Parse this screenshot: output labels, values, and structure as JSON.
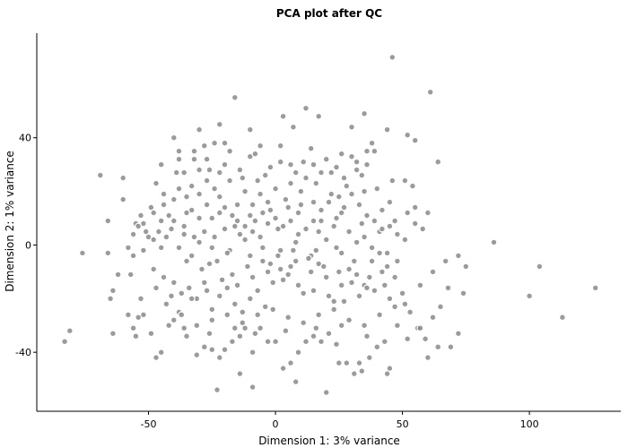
{
  "chart_data": {
    "type": "scatter",
    "title": "PCA plot after QC",
    "xlabel": "Dimension 1: 3% variance",
    "ylabel": "Dimension 2: 1% variance",
    "xlim": [
      -94,
      136
    ],
    "ylim": [
      -62,
      79
    ],
    "xticks": [
      -50,
      0,
      50,
      100
    ],
    "yticks": [
      -40,
      0,
      40
    ],
    "xtick_labels": [
      "-50",
      "0",
      "50",
      "100"
    ],
    "ytick_labels": [
      "-40",
      "0",
      "40"
    ],
    "grid": false,
    "legend": "none",
    "point_color": "#7a7a7a",
    "points": [
      [
        46,
        70
      ],
      [
        -16,
        55
      ],
      [
        61,
        57
      ],
      [
        12,
        51
      ],
      [
        -10,
        43
      ],
      [
        17,
        48
      ],
      [
        3,
        48
      ],
      [
        -30,
        43
      ],
      [
        -22,
        45
      ],
      [
        35,
        49
      ],
      [
        44,
        43
      ],
      [
        52,
        41
      ],
      [
        55,
        39
      ],
      [
        30,
        44
      ],
      [
        7,
        44
      ],
      [
        -6,
        37
      ],
      [
        -10,
        33
      ],
      [
        -24,
        38
      ],
      [
        -20,
        38
      ],
      [
        -32,
        35
      ],
      [
        -38,
        35
      ],
      [
        -27,
        32
      ],
      [
        -32,
        32
      ],
      [
        -38,
        32
      ],
      [
        -45,
        30
      ],
      [
        -47,
        23
      ],
      [
        -69,
        26
      ],
      [
        -60,
        25
      ],
      [
        -36,
        27
      ],
      [
        -30,
        28
      ],
      [
        -26,
        28
      ],
      [
        -22,
        27
      ],
      [
        -14,
        28
      ],
      [
        -7,
        24
      ],
      [
        -2,
        29
      ],
      [
        2,
        31
      ],
      [
        6,
        30
      ],
      [
        11,
        31
      ],
      [
        15,
        30
      ],
      [
        22,
        27
      ],
      [
        27,
        25
      ],
      [
        32,
        31
      ],
      [
        36,
        30
      ],
      [
        39,
        35
      ],
      [
        46,
        24
      ],
      [
        51,
        24
      ],
      [
        54,
        22
      ],
      [
        64,
        31
      ],
      [
        -53,
        11
      ],
      [
        -55,
        8
      ],
      [
        -54,
        7
      ],
      [
        -51,
        5
      ],
      [
        -50,
        3
      ],
      [
        -48,
        2
      ],
      [
        -45,
        9
      ],
      [
        -42,
        11
      ],
      [
        -40,
        17
      ],
      [
        -38,
        21
      ],
      [
        -35,
        18
      ],
      [
        -33,
        13
      ],
      [
        -30,
        10
      ],
      [
        -27,
        15
      ],
      [
        -24,
        21
      ],
      [
        -22,
        18
      ],
      [
        -20,
        14
      ],
      [
        -17,
        11
      ],
      [
        -15,
        9
      ],
      [
        -12,
        7
      ],
      [
        -9,
        5
      ],
      [
        -6,
        3
      ],
      [
        -3,
        8
      ],
      [
        0,
        10
      ],
      [
        3,
        7
      ],
      [
        6,
        9
      ],
      [
        9,
        12
      ],
      [
        12,
        6
      ],
      [
        15,
        9
      ],
      [
        18,
        13
      ],
      [
        21,
        16
      ],
      [
        24,
        10
      ],
      [
        27,
        14
      ],
      [
        30,
        19
      ],
      [
        33,
        15
      ],
      [
        36,
        11
      ],
      [
        39,
        9
      ],
      [
        42,
        13
      ],
      [
        45,
        7
      ],
      [
        48,
        4
      ],
      [
        51,
        2
      ],
      [
        55,
        8
      ],
      [
        -66,
        9
      ],
      [
        -62,
        -11
      ],
      [
        -56,
        -4
      ],
      [
        -52,
        -2
      ],
      [
        -48,
        -9
      ],
      [
        -44,
        -12
      ],
      [
        -40,
        -14
      ],
      [
        -37,
        -18
      ],
      [
        -34,
        -16
      ],
      [
        -31,
        -20
      ],
      [
        -28,
        -14
      ],
      [
        -25,
        -24
      ],
      [
        -22,
        -19
      ],
      [
        -19,
        -16
      ],
      [
        -16,
        -22
      ],
      [
        -13,
        -25
      ],
      [
        -10,
        -20
      ],
      [
        -7,
        -17
      ],
      [
        -4,
        -23
      ],
      [
        -1,
        -14
      ],
      [
        2,
        -9
      ],
      [
        5,
        -11
      ],
      [
        8,
        -6
      ],
      [
        11,
        -18
      ],
      [
        14,
        -10
      ],
      [
        17,
        -7
      ],
      [
        20,
        -12
      ],
      [
        23,
        -21
      ],
      [
        26,
        -15
      ],
      [
        29,
        -9
      ],
      [
        32,
        -11
      ],
      [
        35,
        -15
      ],
      [
        38,
        -6
      ],
      [
        41,
        -3
      ],
      [
        44,
        -8
      ],
      [
        47,
        -12
      ],
      [
        50,
        -18
      ],
      [
        53,
        -25
      ],
      [
        56,
        -31
      ],
      [
        59,
        -35
      ],
      [
        62,
        -27
      ],
      [
        65,
        -23
      ],
      [
        68,
        -16
      ],
      [
        72,
        -4
      ],
      [
        74,
        -18
      ],
      [
        75,
        -8
      ],
      [
        -76,
        -3
      ],
      [
        -66,
        -3
      ],
      [
        -64,
        -17
      ],
      [
        -65,
        -20
      ],
      [
        -64,
        -33
      ],
      [
        -58,
        -26
      ],
      [
        -56,
        -31
      ],
      [
        -55,
        -34
      ],
      [
        -54,
        -27
      ],
      [
        -52,
        -26
      ],
      [
        -49,
        -33
      ],
      [
        -47,
        -42
      ],
      [
        -45,
        -40
      ],
      [
        -42,
        -30
      ],
      [
        -40,
        -28
      ],
      [
        -38,
        -25
      ],
      [
        -35,
        -34
      ],
      [
        -31,
        -41
      ],
      [
        -28,
        -38
      ],
      [
        -25,
        -39
      ],
      [
        -22,
        -42
      ],
      [
        -20,
        -39
      ],
      [
        -17,
        -36
      ],
      [
        -14,
        -34
      ],
      [
        -12,
        -31
      ],
      [
        -9,
        -40
      ],
      [
        -6,
        -31
      ],
      [
        -3,
        -36
      ],
      [
        0,
        -36
      ],
      [
        3,
        -46
      ],
      [
        6,
        -44
      ],
      [
        9,
        -40
      ],
      [
        12,
        -36
      ],
      [
        15,
        -34
      ],
      [
        18,
        -36
      ],
      [
        21,
        -33
      ],
      [
        24,
        -37
      ],
      [
        28,
        -44
      ],
      [
        31,
        -48
      ],
      [
        34,
        -47
      ],
      [
        37,
        -42
      ],
      [
        40,
        -38
      ],
      [
        43,
        -36
      ],
      [
        45,
        -46
      ],
      [
        48,
        -30
      ],
      [
        52,
        -35
      ],
      [
        57,
        -31
      ],
      [
        60,
        -42
      ],
      [
        64,
        -38
      ],
      [
        69,
        -38
      ],
      [
        72,
        -33
      ],
      [
        -83,
        -36
      ],
      [
        -81,
        -32
      ],
      [
        -23,
        -54
      ],
      [
        -9,
        -53
      ],
      [
        -14,
        -48
      ],
      [
        8,
        -51
      ],
      [
        20,
        -55
      ],
      [
        44,
        -48
      ],
      [
        33,
        -44
      ],
      [
        25,
        -44
      ],
      [
        86,
        1
      ],
      [
        104,
        -8
      ],
      [
        100,
        -19
      ],
      [
        113,
        -27
      ],
      [
        126,
        -16
      ],
      [
        -58,
        -1
      ],
      [
        -45,
        -1
      ],
      [
        -30,
        1
      ],
      [
        -25,
        -1
      ],
      [
        -18,
        -2
      ],
      [
        -12,
        2
      ],
      [
        -5,
        -1
      ],
      [
        2,
        -2
      ],
      [
        8,
        1
      ],
      [
        14,
        -4
      ],
      [
        20,
        2
      ],
      [
        26,
        -3
      ],
      [
        32,
        1
      ],
      [
        38,
        -1
      ],
      [
        44,
        -3
      ],
      [
        -60,
        17
      ],
      [
        -41,
        6
      ],
      [
        -36,
        4
      ],
      [
        -28,
        5
      ],
      [
        -20,
        6
      ],
      [
        -14,
        4
      ],
      [
        -9,
        15
      ],
      [
        -3,
        16
      ],
      [
        4,
        17
      ],
      [
        10,
        20
      ],
      [
        16,
        23
      ],
      [
        22,
        19
      ],
      [
        28,
        22
      ],
      [
        34,
        26
      ],
      [
        40,
        21
      ],
      [
        -18,
        24
      ],
      [
        -12,
        20
      ],
      [
        -6,
        19
      ],
      [
        0,
        21
      ],
      [
        6,
        23
      ],
      [
        12,
        25
      ],
      [
        18,
        27
      ],
      [
        24,
        29
      ],
      [
        30,
        33
      ],
      [
        36,
        35
      ],
      [
        -27,
        24
      ],
      [
        -33,
        22
      ],
      [
        -39,
        27
      ],
      [
        -44,
        19
      ],
      [
        -49,
        14
      ],
      [
        -35,
        -6
      ],
      [
        -29,
        -9
      ],
      [
        -23,
        -6
      ],
      [
        -17,
        -11
      ],
      [
        -11,
        -8
      ],
      [
        -5,
        -6
      ],
      [
        1,
        -4
      ],
      [
        7,
        -2
      ],
      [
        13,
        -5
      ],
      [
        19,
        -8
      ],
      [
        25,
        -10
      ],
      [
        31,
        -6
      ],
      [
        37,
        -12
      ],
      [
        43,
        -15
      ],
      [
        -43,
        -22
      ],
      [
        -37,
        -26
      ],
      [
        -31,
        -30
      ],
      [
        -25,
        -28
      ],
      [
        -19,
        -26
      ],
      [
        -13,
        -29
      ],
      [
        -7,
        -26
      ],
      [
        -1,
        -24
      ],
      [
        5,
        -27
      ],
      [
        11,
        -29
      ],
      [
        17,
        -26
      ],
      [
        23,
        -24
      ],
      [
        29,
        -28
      ],
      [
        35,
        -30
      ],
      [
        41,
        -26
      ],
      [
        47,
        -23
      ],
      [
        -47,
        -16
      ],
      [
        -41,
        -19
      ],
      [
        -33,
        -20
      ],
      [
        -27,
        -17
      ],
      [
        -21,
        -13
      ],
      [
        -15,
        -15
      ],
      [
        -9,
        -12
      ],
      [
        -3,
        -10
      ],
      [
        3,
        -13
      ],
      [
        9,
        -15
      ],
      [
        15,
        -17
      ],
      [
        21,
        -19
      ],
      [
        27,
        -21
      ],
      [
        33,
        -19
      ],
      [
        39,
        -17
      ],
      [
        45,
        -20
      ],
      [
        51,
        -22
      ],
      [
        57,
        -15
      ],
      [
        62,
        -10
      ],
      [
        67,
        -6
      ],
      [
        -53,
        -20
      ],
      [
        -57,
        -11
      ],
      [
        -35,
        12
      ],
      [
        -25,
        10
      ],
      [
        -15,
        15
      ],
      [
        -5,
        12
      ],
      [
        5,
        14
      ],
      [
        15,
        16
      ],
      [
        25,
        18
      ],
      [
        35,
        20
      ],
      [
        45,
        16
      ],
      [
        55,
        14
      ],
      [
        60,
        12
      ],
      [
        58,
        6
      ],
      [
        52,
        12
      ],
      [
        -28,
        37
      ],
      [
        -18,
        35
      ],
      [
        -8,
        34
      ],
      [
        2,
        37
      ],
      [
        14,
        36
      ],
      [
        26,
        34
      ],
      [
        38,
        38
      ],
      [
        -40,
        40
      ],
      [
        -46,
        5
      ],
      [
        -43,
        3
      ],
      [
        -38,
        -1
      ],
      [
        -33,
        -4
      ],
      [
        -26,
        -7
      ],
      [
        -19,
        -3
      ],
      [
        -10,
        -4
      ],
      [
        -2,
        -7
      ],
      [
        6,
        -8
      ],
      [
        16,
        -2
      ],
      [
        24,
        -1
      ],
      [
        30,
        -14
      ],
      [
        36,
        -16
      ],
      [
        42,
        -10
      ],
      [
        48,
        -6
      ],
      [
        -56,
        4
      ],
      [
        -52,
        8
      ],
      [
        -48,
        12
      ],
      [
        -44,
        15
      ],
      [
        -40,
        9
      ],
      [
        -36,
        7
      ],
      [
        -32,
        3
      ],
      [
        -24,
        3
      ],
      [
        -16,
        7
      ],
      [
        -8,
        9
      ],
      [
        1,
        6
      ],
      [
        9,
        4
      ],
      [
        17,
        5
      ],
      [
        23,
        7
      ],
      [
        29,
        5
      ],
      [
        35,
        3
      ],
      [
        41,
        5
      ],
      [
        47,
        9
      ],
      [
        -20,
        30
      ],
      [
        -13,
        25
      ],
      [
        -4,
        26
      ],
      [
        8,
        27
      ],
      [
        20,
        32
      ],
      [
        32,
        28
      ],
      [
        -30,
        19
      ],
      [
        -22,
        12
      ],
      [
        -10,
        11
      ],
      [
        -2,
        13
      ],
      [
        10,
        15
      ],
      [
        18,
        9
      ],
      [
        26,
        12
      ],
      [
        34,
        8
      ],
      [
        42,
        6
      ],
      [
        -16,
        -31
      ],
      [
        -8,
        -33
      ],
      [
        4,
        -32
      ],
      [
        16,
        -31
      ],
      [
        26,
        -30
      ],
      [
        36,
        -34
      ],
      [
        -26,
        -33
      ],
      [
        -36,
        -31
      ]
    ]
  }
}
